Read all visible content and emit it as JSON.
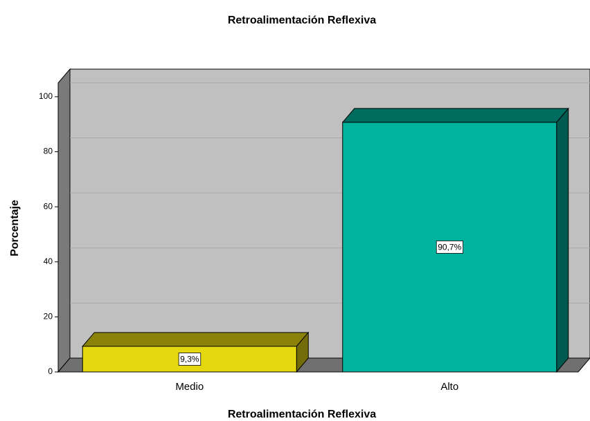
{
  "chart_data": {
    "type": "bar3d",
    "title": "Retroalimentación Reflexiva",
    "x_label": "Retroalimentación Reflexiva",
    "y_label": "Porcentaje",
    "categories": [
      "Medio",
      "Alto"
    ],
    "values": [
      9.3,
      90.7
    ],
    "value_labels": [
      "9,3%",
      "90,7%"
    ],
    "colors": [
      "#e6d80f",
      "#00b39f"
    ],
    "ylim": [
      0,
      105
    ],
    "yticks": [
      0,
      20,
      40,
      60,
      80,
      100
    ],
    "grid": true
  }
}
